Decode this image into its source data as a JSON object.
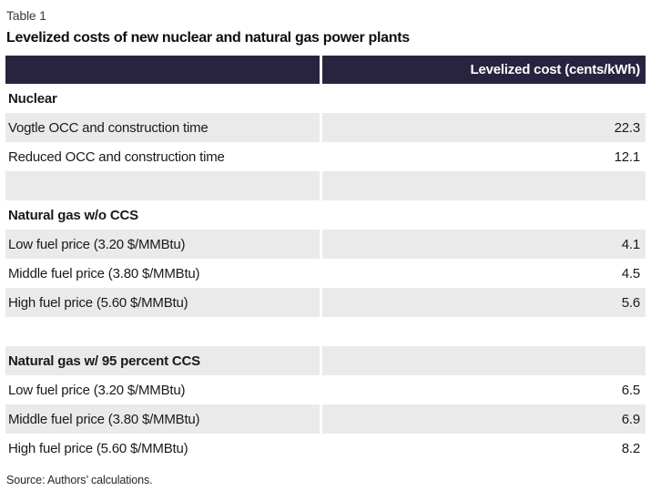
{
  "page": {
    "table_label": "Table 1",
    "title": "Levelized costs of new nuclear and natural gas power plants",
    "source_note": "Source: Authors’ calculations."
  },
  "table": {
    "columns": {
      "category_header": "",
      "value_header": "Levelized cost (cents/kWh)"
    },
    "rows": [
      {
        "type": "section",
        "label": "Nuclear",
        "value": ""
      },
      {
        "type": "data",
        "label": "Vogtle OCC and construction time",
        "value": "22.3"
      },
      {
        "type": "data",
        "label": "Reduced OCC and construction time",
        "value": "12.1"
      },
      {
        "type": "spacer",
        "label": "",
        "value": ""
      },
      {
        "type": "section",
        "label": "Natural gas w/o CCS",
        "value": ""
      },
      {
        "type": "data",
        "label": "Low fuel price (3.20 $/MMBtu)",
        "value": "4.1"
      },
      {
        "type": "data",
        "label": "Middle fuel price (3.80 $/MMBtu)",
        "value": "4.5"
      },
      {
        "type": "data",
        "label": "High fuel price (5.60 $/MMBtu)",
        "value": "5.6"
      },
      {
        "type": "spacer",
        "label": "",
        "value": ""
      },
      {
        "type": "section",
        "label": "Natural gas w/ 95 percent CCS",
        "value": ""
      },
      {
        "type": "data",
        "label": "Low fuel price (3.20 $/MMBtu)",
        "value": "6.5"
      },
      {
        "type": "data",
        "label": "Middle fuel price (3.80 $/MMBtu)",
        "value": "6.9"
      },
      {
        "type": "data",
        "label": "High fuel price (5.60 $/MMBtu)",
        "value": "8.2"
      }
    ]
  },
  "colors": {
    "header_bg": "#282440",
    "header_text": "#ffffff",
    "stripe_bg": "#eaeaea",
    "body_text": "#1a1a1a"
  }
}
